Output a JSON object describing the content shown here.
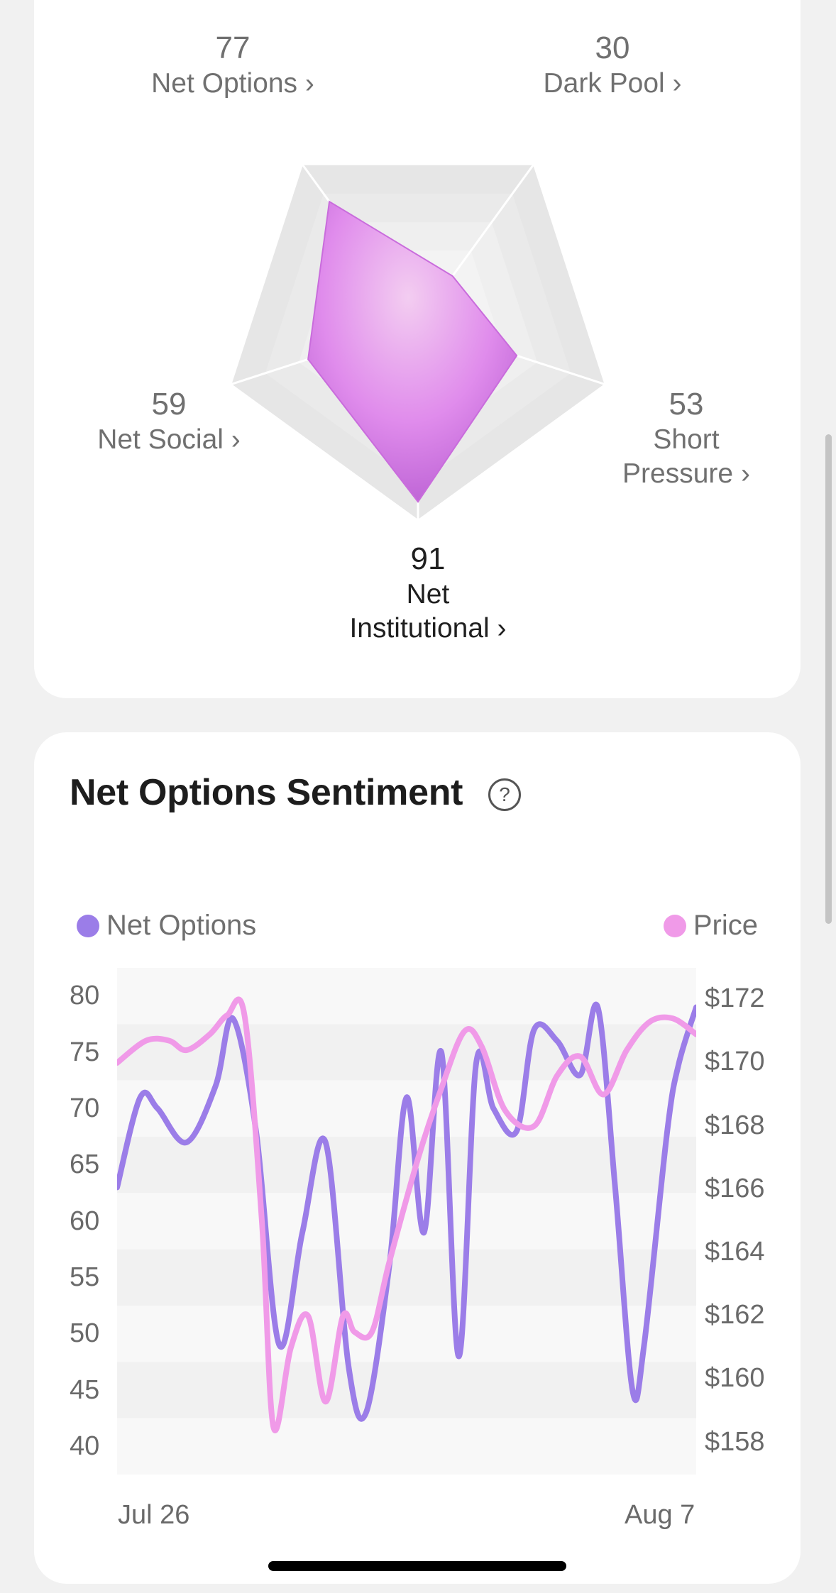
{
  "radar": {
    "axes": [
      {
        "value": "77",
        "label": "Net Options ›"
      },
      {
        "value": "30",
        "label": "Dark Pool ›"
      },
      {
        "value": "53",
        "label": "Short Pressure ›"
      },
      {
        "value": "91",
        "label": "Net Institutional ›"
      },
      {
        "value": "59",
        "label": "Net Social ›"
      }
    ],
    "max": 100,
    "fill_color": "#d77be6"
  },
  "sentiment": {
    "title": "Net Options Sentiment",
    "help_icon": "?",
    "legend": [
      {
        "name": "Net Options",
        "color": "#9b7de8"
      },
      {
        "name": "Price",
        "color": "#f09ae8"
      }
    ]
  },
  "chart_data": {
    "type": "line",
    "x_start": "Jul 26",
    "x_end": "Aug 7",
    "y_left_ticks": [
      "80",
      "75",
      "70",
      "65",
      "60",
      "55",
      "50",
      "45",
      "40"
    ],
    "y_right_ticks": [
      "$172",
      "$170",
      "$168",
      "$166",
      "$164",
      "$162",
      "$160",
      "$158"
    ],
    "ylim_left": [
      37.5,
      82.5
    ],
    "ylim_right": [
      157,
      173
    ],
    "grid": "alternating horizontal bands",
    "legend_placement": "top",
    "series": [
      {
        "name": "Net Options",
        "axis": "left",
        "color": "#9b7de8",
        "x": [
          0,
          0.04,
          0.07,
          0.12,
          0.17,
          0.2,
          0.24,
          0.28,
          0.32,
          0.36,
          0.4,
          0.43,
          0.47,
          0.5,
          0.53,
          0.56,
          0.59,
          0.62,
          0.65,
          0.69,
          0.72,
          0.76,
          0.8,
          0.83,
          0.86,
          0.89,
          0.91,
          0.95,
          0.97,
          1.0
        ],
        "values": [
          63,
          71,
          70,
          67,
          72,
          78,
          68,
          49,
          59,
          67,
          47,
          43,
          56,
          71,
          59,
          75,
          48,
          74,
          70,
          68,
          77,
          76,
          73,
          79,
          63,
          45,
          49,
          68,
          74,
          79
        ]
      },
      {
        "name": "Price",
        "axis": "right",
        "color": "#f09ae8",
        "x": [
          0,
          0.05,
          0.09,
          0.12,
          0.16,
          0.19,
          0.22,
          0.25,
          0.27,
          0.3,
          0.33,
          0.36,
          0.39,
          0.41,
          0.44,
          0.47,
          0.52,
          0.56,
          0.6,
          0.63,
          0.67,
          0.72,
          0.76,
          0.8,
          0.84,
          0.88,
          0.92,
          0.96,
          1.0
        ],
        "values": [
          170,
          170.7,
          170.7,
          170.4,
          170.9,
          171.5,
          171.5,
          165,
          158.5,
          161,
          162,
          159.3,
          162,
          161.5,
          161.5,
          163.7,
          167,
          169.2,
          171,
          170.5,
          168.5,
          168,
          169.6,
          170.2,
          169,
          170.4,
          171.3,
          171.4,
          170.9
        ]
      }
    ]
  }
}
